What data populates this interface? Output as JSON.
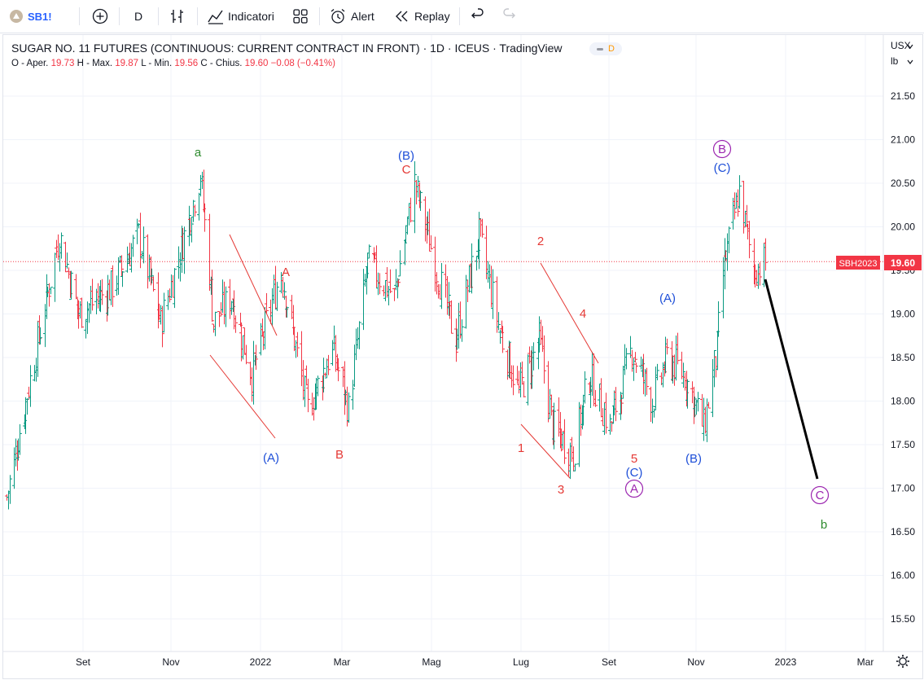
{
  "toolbar": {
    "symbol": "SB1!",
    "interval": "D",
    "indicators_label": "Indicatori",
    "alert_label": "Alert",
    "replay_label": "Replay"
  },
  "legend": {
    "title": "SUGAR NO. 11 FUTURES (CONTINUOUS: CURRENT CONTRACT IN FRONT) · 1D · ICEUS · TradingView",
    "badge": "D",
    "open_label": "O - Aper.",
    "open_value": "19.73",
    "high_label": "H - Max.",
    "high_value": "19.87",
    "low_label": "L - Min.",
    "low_value": "19.56",
    "close_label": "C - Chius.",
    "close_value": "19.60",
    "change": "−0.08 (−0.41%)"
  },
  "price_axis": {
    "currency": "USX",
    "unit": "lb",
    "ticks": [
      "21.50",
      "21.00",
      "20.50",
      "20.00",
      "19.50",
      "19.00",
      "18.50",
      "18.00",
      "17.50",
      "17.00",
      "16.50",
      "16.00",
      "15.50"
    ],
    "last_price": "19.60",
    "last_price_tag": "SBH2023"
  },
  "time_axis": {
    "ticks": [
      "Set",
      "Nov",
      "2022",
      "Mar",
      "Mag",
      "Lug",
      "Set",
      "Nov",
      "2023",
      "Mar"
    ]
  },
  "colors": {
    "up": "#089981",
    "down": "#f23645",
    "wave_red": "#e53935",
    "wave_blue": "#1e4fd8",
    "wave_green": "#2e8b2e",
    "wave_purple": "#9c27b0"
  },
  "annotations": [
    {
      "text": "a",
      "color": "wave_green"
    },
    {
      "text": "(A)",
      "color": "wave_blue"
    },
    {
      "text": "A",
      "color": "wave_red"
    },
    {
      "text": "B",
      "color": "wave_red"
    },
    {
      "text": "(B)",
      "color": "wave_blue"
    },
    {
      "text": "C",
      "color": "wave_red"
    },
    {
      "text": "2",
      "color": "wave_red"
    },
    {
      "text": "1",
      "color": "wave_red"
    },
    {
      "text": "3",
      "color": "wave_red"
    },
    {
      "text": "4",
      "color": "wave_red"
    },
    {
      "text": "5",
      "color": "wave_red"
    },
    {
      "text": "(C)",
      "color": "wave_blue"
    },
    {
      "text": "A",
      "color": "wave_purple",
      "circled": true
    },
    {
      "text": "(A)",
      "color": "wave_blue"
    },
    {
      "text": "(B)",
      "color": "wave_blue"
    },
    {
      "text": "B",
      "color": "wave_purple",
      "circled": true
    },
    {
      "text": "(C)",
      "color": "wave_blue"
    },
    {
      "text": "C",
      "color": "wave_purple",
      "circled": true
    },
    {
      "text": "b",
      "color": "wave_green"
    }
  ],
  "chart_data": {
    "type": "ohlc",
    "title": "SUGAR NO. 11 FUTURES (CONTINUOUS: CURRENT CONTRACT IN FRONT) · 1D · ICEUS · TradingView",
    "y_range": [
      15.3,
      21.9
    ],
    "x_ticks": [
      "Set",
      "Nov",
      "2022",
      "Mar",
      "Mag",
      "Lug",
      "Set",
      "Nov",
      "2023",
      "Mar"
    ],
    "last_close": 19.6,
    "path_dates": [
      "2021-07-07",
      "2021-07-20",
      "2021-08-12",
      "2021-08-25",
      "2021-09-16",
      "2021-10-05",
      "2021-10-20",
      "2021-11-05",
      "2021-11-16",
      "2021-11-25",
      "2021-12-07",
      "2021-12-21",
      "2022-01-10",
      "2022-01-28",
      "2022-02-14",
      "2022-02-25",
      "2022-03-10",
      "2022-03-28",
      "2022-04-11",
      "2022-04-26",
      "2022-05-09",
      "2022-05-25",
      "2022-06-08",
      "2022-06-21",
      "2022-07-05",
      "2022-07-14",
      "2022-07-28",
      "2022-08-08",
      "2022-08-22",
      "2022-09-06",
      "2022-09-20",
      "2022-09-30",
      "2022-10-12",
      "2022-10-25",
      "2022-11-03",
      "2022-11-07",
      "2022-11-18",
      "2022-11-28",
      "2022-12-06"
    ],
    "path_close": [
      16.9,
      18.0,
      19.9,
      19.0,
      19.3,
      19.9,
      18.9,
      19.9,
      20.6,
      18.9,
      19.2,
      18.3,
      19.5,
      17.9,
      18.6,
      17.9,
      19.6,
      19.2,
      20.5,
      19.5,
      18.7,
      19.9,
      18.8,
      18.1,
      18.7,
      17.7,
      17.4,
      18.3,
      17.7,
      18.6,
      18.0,
      18.5,
      18.3,
      17.7,
      18.6,
      19.5,
      20.4,
      19.5,
      19.6
    ]
  }
}
